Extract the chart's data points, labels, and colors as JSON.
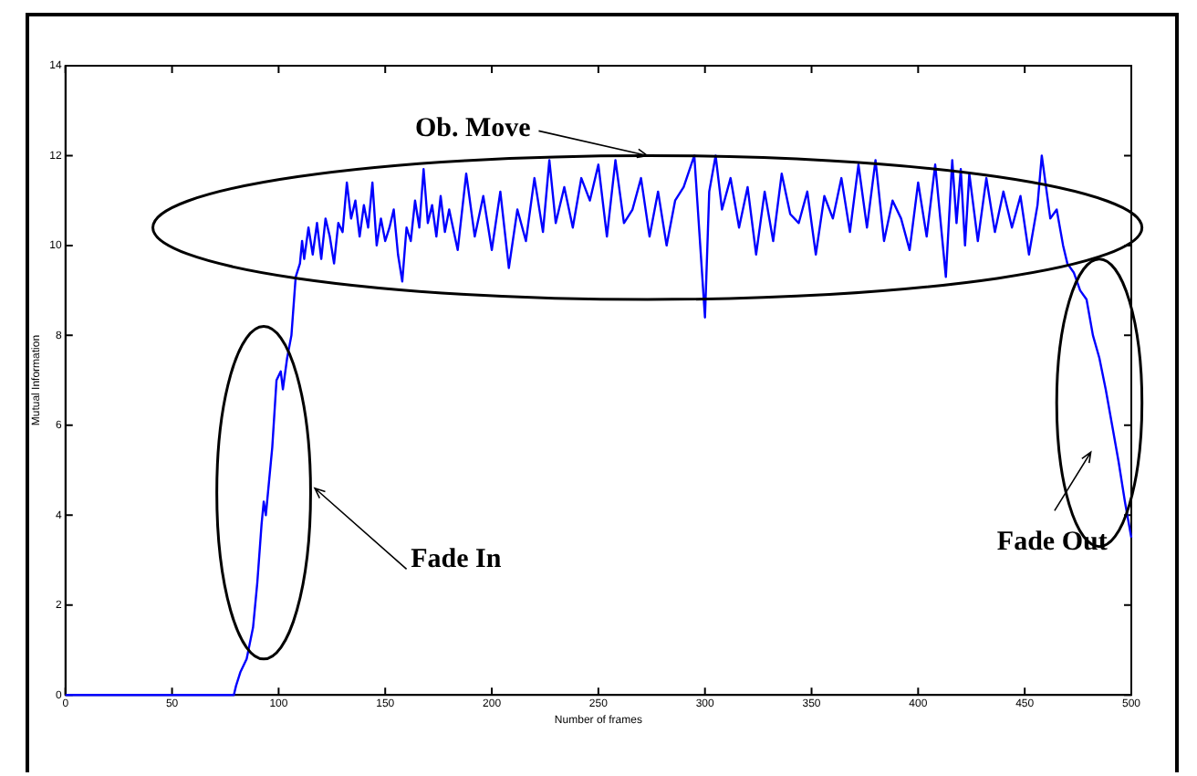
{
  "chart_data": {
    "type": "line",
    "xlabel": "Number of frames",
    "ylabel": "Mutual Information",
    "xlim": [
      0,
      500
    ],
    "xticks": [
      0,
      50,
      100,
      150,
      200,
      250,
      300,
      350,
      400,
      450,
      500
    ],
    "ylim": [
      0,
      14
    ],
    "yticks": [
      0,
      2,
      4,
      6,
      8,
      10,
      12,
      14
    ],
    "grid": false,
    "legend": false,
    "marker": "none",
    "line_style": "solid",
    "annotations": [
      "Ob. Move",
      "Fade In",
      "Fade Out"
    ],
    "series": [
      {
        "color": "#0000ff",
        "x": [
          0,
          79,
          80,
          82,
          85,
          88,
          90,
          92,
          93,
          94,
          95,
          97,
          99,
          101,
          102,
          104,
          106,
          108,
          110,
          111,
          112,
          114,
          116,
          118,
          120,
          122,
          124,
          126,
          128,
          130,
          132,
          134,
          136,
          138,
          140,
          142,
          144,
          146,
          148,
          150,
          152,
          154,
          156,
          158,
          160,
          162,
          164,
          166,
          168,
          170,
          172,
          174,
          176,
          178,
          180,
          184,
          188,
          192,
          196,
          200,
          204,
          208,
          212,
          216,
          220,
          224,
          227,
          230,
          234,
          238,
          242,
          246,
          250,
          254,
          258,
          262,
          266,
          270,
          274,
          278,
          282,
          286,
          290,
          295,
          300,
          302,
          305,
          308,
          312,
          316,
          320,
          324,
          328,
          332,
          336,
          340,
          344,
          348,
          352,
          356,
          360,
          364,
          368,
          372,
          376,
          380,
          384,
          388,
          392,
          396,
          400,
          404,
          408,
          413,
          416,
          418,
          420,
          422,
          424,
          428,
          432,
          436,
          440,
          444,
          448,
          452,
          456,
          458,
          460,
          462,
          465,
          468,
          470,
          473,
          476,
          479,
          482,
          485,
          488,
          491,
          494,
          497,
          500
        ],
        "values": [
          0,
          0,
          0.2,
          0.5,
          0.8,
          1.5,
          2.5,
          3.8,
          4.3,
          4.0,
          4.5,
          5.5,
          7.0,
          7.2,
          6.8,
          7.5,
          8.0,
          9.3,
          9.6,
          10.1,
          9.7,
          10.4,
          9.8,
          10.5,
          9.7,
          10.6,
          10.2,
          9.6,
          10.5,
          10.3,
          11.4,
          10.6,
          11.0,
          10.2,
          10.9,
          10.4,
          11.4,
          10.0,
          10.6,
          10.1,
          10.4,
          10.8,
          9.8,
          9.2,
          10.4,
          10.1,
          11.0,
          10.4,
          11.7,
          10.5,
          10.9,
          10.2,
          11.1,
          10.3,
          10.8,
          9.9,
          11.6,
          10.2,
          11.1,
          9.9,
          11.2,
          9.5,
          10.8,
          10.1,
          11.5,
          10.3,
          11.9,
          10.5,
          11.3,
          10.4,
          11.5,
          11.0,
          11.8,
          10.2,
          11.9,
          10.5,
          10.8,
          11.5,
          10.2,
          11.2,
          10.0,
          11.0,
          11.3,
          12.0,
          8.4,
          11.2,
          12.0,
          10.8,
          11.5,
          10.4,
          11.3,
          9.8,
          11.2,
          10.1,
          11.6,
          10.7,
          10.5,
          11.2,
          9.8,
          11.1,
          10.6,
          11.5,
          10.3,
          11.8,
          10.4,
          11.9,
          10.1,
          11.0,
          10.6,
          9.9,
          11.4,
          10.2,
          11.8,
          9.3,
          11.9,
          10.5,
          11.7,
          10.0,
          11.6,
          10.1,
          11.5,
          10.3,
          11.2,
          10.4,
          11.1,
          9.8,
          10.9,
          12.0,
          11.3,
          10.6,
          10.8,
          10.0,
          9.6,
          9.4,
          9.0,
          8.8,
          8.0,
          7.5,
          6.8,
          6.0,
          5.2,
          4.3,
          3.5
        ]
      }
    ]
  }
}
